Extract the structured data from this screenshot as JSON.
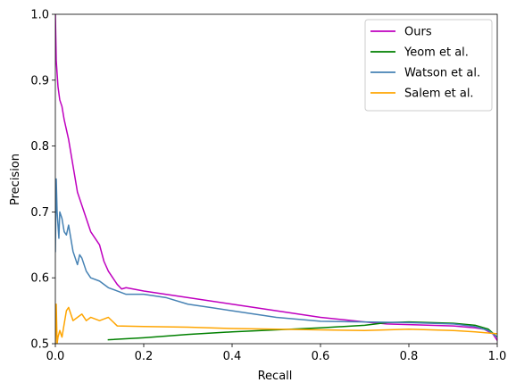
{
  "chart_data": {
    "type": "line",
    "title": "",
    "xlabel": "Recall",
    "ylabel": "Precision",
    "xlim": [
      0,
      1
    ],
    "ylim": [
      0.5,
      1
    ],
    "xticks": [
      "0.0",
      "0.2",
      "0.4",
      "0.6",
      "0.8",
      "1.0"
    ],
    "yticks": [
      "0.5",
      "0.6",
      "0.7",
      "0.8",
      "0.9",
      "1.0"
    ],
    "grid": false,
    "legend_position": "top-right",
    "series": [
      {
        "name": "Ours",
        "color": "#bf00bf",
        "x": [
          0.0,
          0.002,
          0.004,
          0.006,
          0.01,
          0.015,
          0.02,
          0.03,
          0.04,
          0.05,
          0.06,
          0.07,
          0.08,
          0.09,
          0.1,
          0.11,
          0.12,
          0.13,
          0.14,
          0.15,
          0.16,
          0.2,
          0.3,
          0.4,
          0.5,
          0.6,
          0.7,
          0.75,
          0.8,
          0.85,
          0.9,
          0.95,
          0.97,
          0.99,
          1.0
        ],
        "y": [
          1.0,
          0.93,
          0.91,
          0.89,
          0.87,
          0.86,
          0.84,
          0.81,
          0.77,
          0.73,
          0.71,
          0.69,
          0.67,
          0.66,
          0.65,
          0.625,
          0.61,
          0.6,
          0.59,
          0.583,
          0.585,
          0.58,
          0.57,
          0.56,
          0.55,
          0.54,
          0.533,
          0.53,
          0.529,
          0.528,
          0.527,
          0.524,
          0.522,
          0.515,
          0.505
        ]
      },
      {
        "name": "Yeom et al.",
        "color": "#008000",
        "x": [
          0.12,
          0.2,
          0.3,
          0.4,
          0.5,
          0.6,
          0.7,
          0.75,
          0.8,
          0.85,
          0.9,
          0.95,
          0.98,
          1.0
        ],
        "y": [
          0.506,
          0.509,
          0.514,
          0.518,
          0.521,
          0.524,
          0.528,
          0.532,
          0.533,
          0.532,
          0.531,
          0.528,
          0.522,
          0.51
        ]
      },
      {
        "name": "Watson et al.",
        "color": "#4682b4",
        "x": [
          0.0,
          0.002,
          0.004,
          0.006,
          0.008,
          0.01,
          0.015,
          0.02,
          0.025,
          0.03,
          0.04,
          0.05,
          0.055,
          0.06,
          0.07,
          0.08,
          0.1,
          0.12,
          0.14,
          0.16,
          0.2,
          0.25,
          0.3,
          0.35,
          0.4,
          0.5,
          0.6,
          0.7,
          0.8,
          0.85,
          0.9,
          0.95,
          0.98,
          1.0
        ],
        "y": [
          0.64,
          0.75,
          0.7,
          0.68,
          0.66,
          0.7,
          0.69,
          0.67,
          0.665,
          0.68,
          0.64,
          0.62,
          0.635,
          0.63,
          0.61,
          0.6,
          0.595,
          0.585,
          0.58,
          0.575,
          0.575,
          0.57,
          0.56,
          0.555,
          0.55,
          0.54,
          0.534,
          0.533,
          0.532,
          0.531,
          0.53,
          0.526,
          0.52,
          0.51
        ]
      },
      {
        "name": "Salem et al.",
        "color": "#ffa500",
        "x": [
          0.0,
          0.002,
          0.004,
          0.006,
          0.01,
          0.015,
          0.02,
          0.025,
          0.03,
          0.04,
          0.05,
          0.06,
          0.07,
          0.08,
          0.1,
          0.12,
          0.14,
          0.2,
          0.3,
          0.4,
          0.5,
          0.6,
          0.7,
          0.8,
          0.9,
          0.95,
          1.0
        ],
        "y": [
          0.5,
          0.56,
          0.5,
          0.51,
          0.52,
          0.51,
          0.53,
          0.55,
          0.555,
          0.535,
          0.54,
          0.545,
          0.535,
          0.54,
          0.535,
          0.54,
          0.527,
          0.526,
          0.525,
          0.523,
          0.522,
          0.521,
          0.52,
          0.522,
          0.52,
          0.518,
          0.515
        ]
      }
    ]
  }
}
